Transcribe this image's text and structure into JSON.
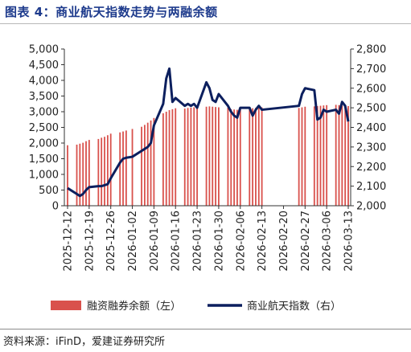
{
  "figure": {
    "title": "图表 4：商业航天指数走势与两融余额",
    "source": "资料来源：iFinD，爱建证券研究所"
  },
  "colors": {
    "title": "#1d3a8c",
    "bars": "#d9514c",
    "line": "#0c1f5e"
  },
  "chart_data": {
    "type": "bar+line",
    "grid": false,
    "legend_position": "bottom",
    "x_tick_labels": [
      "2025-12-12",
      "2025-12-19",
      "2025-12-26",
      "2026-01-02",
      "2026-01-09",
      "2026-01-16",
      "2026-01-23",
      "2026-01-30",
      "2026-02-06",
      "2026-02-13",
      "2026-02-20",
      "2026-02-27",
      "2026-03-06",
      "2026-03-13"
    ],
    "y_left": {
      "min": 0,
      "max": 5000,
      "ticks": [
        "0",
        "500",
        "1,000",
        "1,500",
        "2,000",
        "2,500",
        "3,000",
        "3,500",
        "4,000",
        "4,500",
        "5,000"
      ]
    },
    "y_right": {
      "min": 2000,
      "max": 2800,
      "ticks": [
        "2,000",
        "2,100",
        "2,200",
        "2,300",
        "2,400",
        "2,500",
        "2,600",
        "2,700",
        "2,800"
      ]
    },
    "dates": [
      "2025-12-12",
      "2025-12-15",
      "2025-12-16",
      "2025-12-17",
      "2025-12-18",
      "2025-12-19",
      "2025-12-22",
      "2025-12-23",
      "2025-12-24",
      "2025-12-25",
      "2025-12-26",
      "2025-12-29",
      "2025-12-30",
      "2025-12-31",
      "2026-01-02",
      "2026-01-05",
      "2026-01-06",
      "2026-01-07",
      "2026-01-08",
      "2026-01-09",
      "2026-01-12",
      "2026-01-13",
      "2026-01-14",
      "2026-01-15",
      "2026-01-16",
      "2026-01-19",
      "2026-01-20",
      "2026-01-21",
      "2026-01-22",
      "2026-01-23",
      "2026-01-26",
      "2026-01-27",
      "2026-01-28",
      "2026-01-29",
      "2026-01-30",
      "2026-02-02",
      "2026-02-03",
      "2026-02-04",
      "2026-02-05",
      "2026-02-06",
      "2026-02-09",
      "2026-02-10",
      "2026-02-11",
      "2026-02-12",
      "2026-02-13",
      "2026-02-25",
      "2026-02-26",
      "2026-02-27",
      "2026-03-02",
      "2026-03-03",
      "2026-03-04",
      "2026-03-05",
      "2026-03-06",
      "2026-03-09",
      "2026-03-10",
      "2026-03-11",
      "2026-03-12",
      "2026-03-13"
    ],
    "series": [
      {
        "name": "融资融券余额（左）",
        "type": "bar",
        "axis": "left",
        "values": [
          1930,
          1950,
          1980,
          2010,
          2060,
          2100,
          2130,
          2170,
          2200,
          2250,
          2300,
          2340,
          2370,
          2400,
          2450,
          2520,
          2580,
          2650,
          2720,
          2800,
          2950,
          3000,
          3050,
          3080,
          3110,
          3100,
          3120,
          3130,
          3140,
          3160,
          3160,
          3170,
          3160,
          3150,
          3140,
          3130,
          3080,
          3070,
          3060,
          3070,
          3100,
          3110,
          3120,
          3130,
          3140,
          3120,
          3140,
          3160,
          3170,
          3180,
          3190,
          3200,
          3210,
          3220,
          3210,
          3200,
          3190,
          3180
        ]
      },
      {
        "name": "商业航天指数（右）",
        "type": "line",
        "axis": "right",
        "values": [
          2090,
          2060,
          2050,
          2060,
          2080,
          2095,
          2100,
          2100,
          2105,
          2110,
          2140,
          2220,
          2240,
          2245,
          2250,
          2280,
          2290,
          2300,
          2320,
          2410,
          2520,
          2650,
          2700,
          2530,
          2550,
          2510,
          2520,
          2510,
          2520,
          2500,
          2630,
          2600,
          2540,
          2530,
          2570,
          2510,
          2480,
          2460,
          2450,
          2500,
          2500,
          2460,
          2490,
          2510,
          2490,
          2510,
          2570,
          2600,
          2590,
          2440,
          2450,
          2490,
          2480,
          2490,
          2470,
          2530,
          2510,
          2430
        ]
      }
    ]
  }
}
